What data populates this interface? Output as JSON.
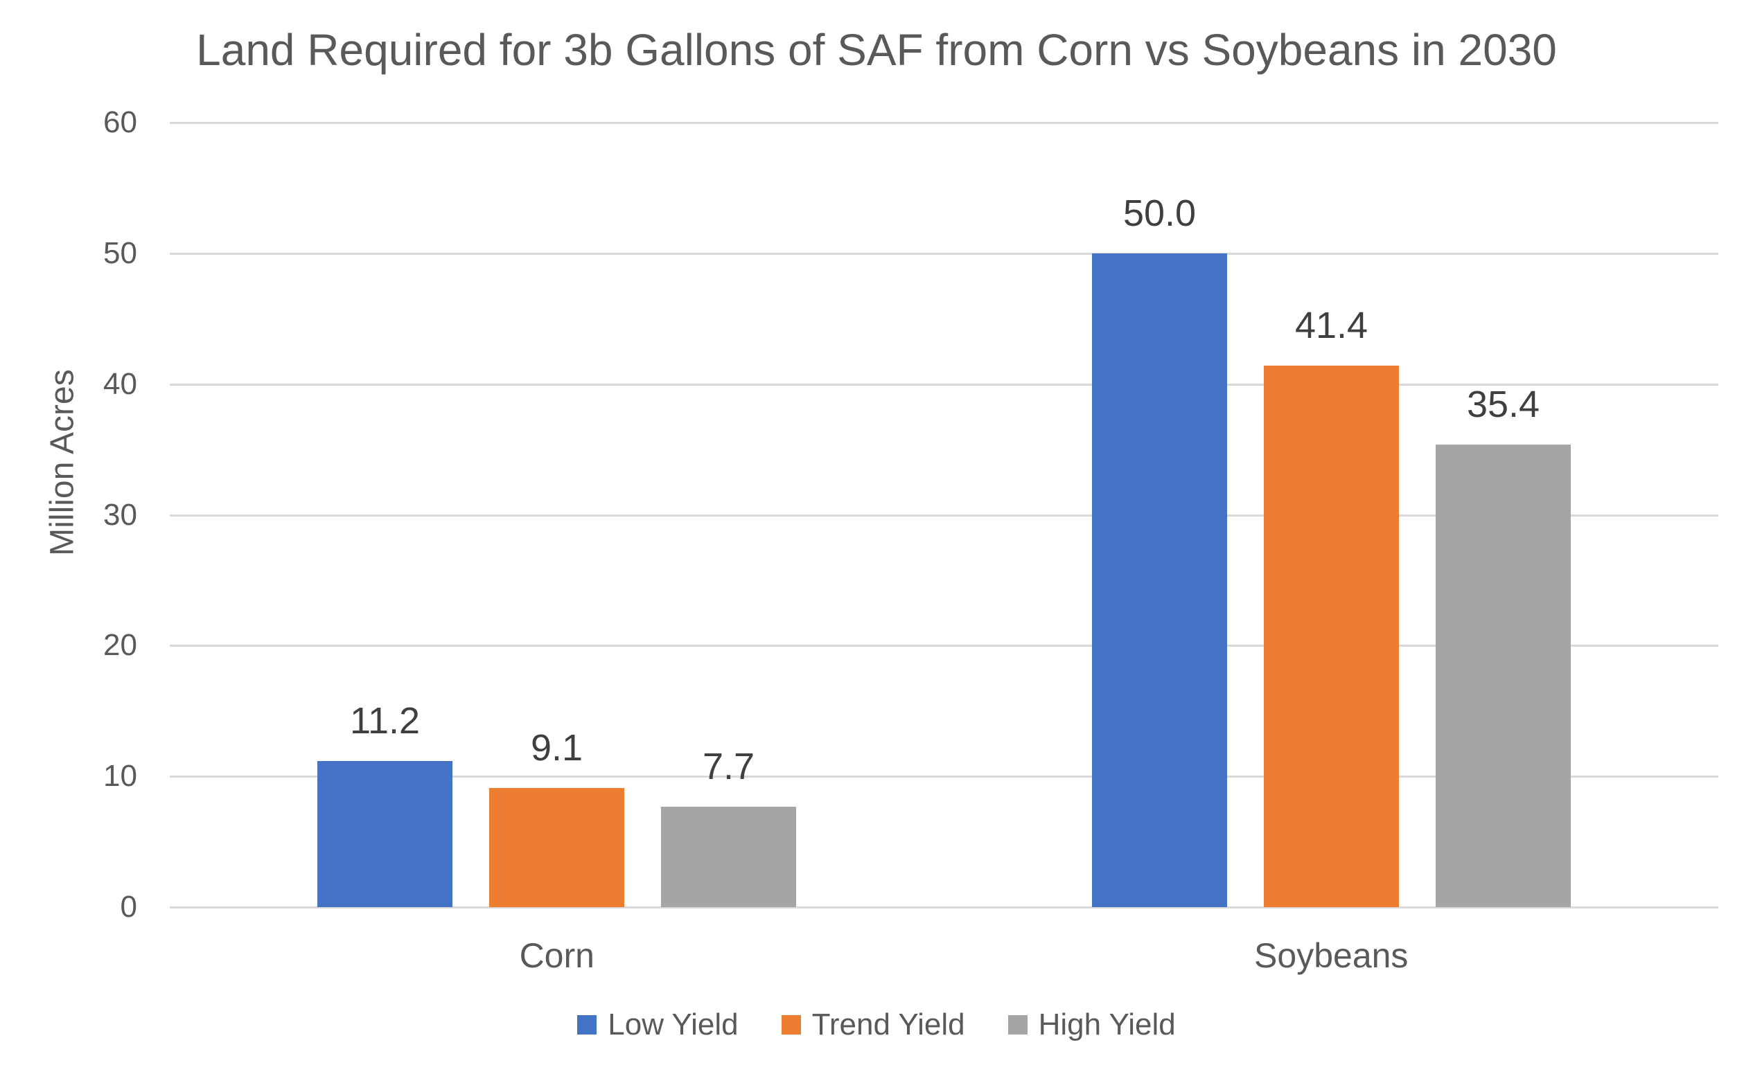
{
  "chart_data": {
    "type": "bar",
    "title": "Land Required for 3b Gallons of SAF from Corn vs Soybeans in 2030",
    "ylabel": "Million Acres",
    "xlabel": "",
    "categories": [
      "Corn",
      "Soybeans"
    ],
    "series": [
      {
        "name": "Low Yield",
        "color": "#4472C4",
        "values": [
          11.2,
          50.0
        ],
        "labels": [
          "11.2",
          "50.0"
        ]
      },
      {
        "name": "Trend Yield",
        "color": "#ED7D31",
        "values": [
          9.1,
          41.4
        ],
        "labels": [
          "9.1",
          "41.4"
        ]
      },
      {
        "name": "High Yield",
        "color": "#A5A5A5",
        "values": [
          7.7,
          35.4
        ],
        "labels": [
          "7.7",
          "35.4"
        ]
      }
    ],
    "ylim": [
      0,
      60
    ],
    "yticks": [
      "0",
      "10",
      "20",
      "30",
      "40",
      "50",
      "60"
    ],
    "grid": true,
    "legend_position": "bottom",
    "colors": {
      "grid": "#D9D9D9",
      "axis_text": "#595959",
      "data_label_text": "#3F3F3F",
      "background": "#FFFFFF"
    }
  }
}
